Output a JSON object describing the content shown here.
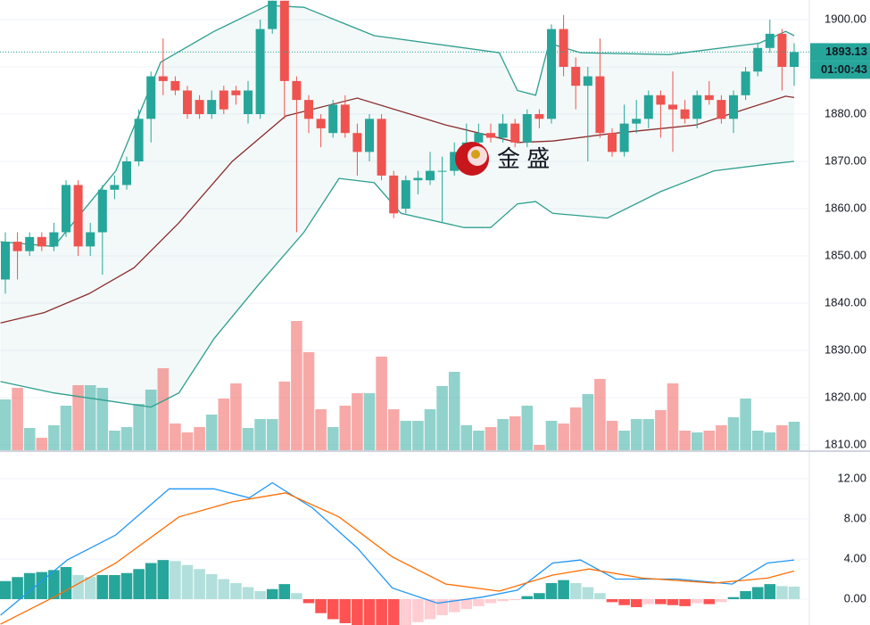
{
  "chart_data": {
    "type": "candlestick",
    "watermark": "金 盛",
    "ylim": [
      1808.87,
      1904.15
    ],
    "yticks": [
      {
        "value": 1810,
        "label": "1810.00"
      },
      {
        "value": 1820,
        "label": "1820.00"
      },
      {
        "value": 1830,
        "label": "1830.00"
      },
      {
        "value": 1840,
        "label": "1840.00"
      },
      {
        "value": 1850,
        "label": "1850.00"
      },
      {
        "value": 1860,
        "label": "1860.00"
      },
      {
        "value": 1870,
        "label": "1870.00"
      },
      {
        "value": 1880,
        "label": "1880.00"
      },
      {
        "value": 1890,
        "label": "1890.00"
      },
      {
        "value": 1900,
        "label": "1900.00"
      }
    ],
    "grid": true,
    "last_price": 1893.13,
    "last_price_label": "1893.13",
    "countdown": "01:00:43",
    "colors": {
      "up": "#26a69a",
      "down": "#ef5350",
      "band": "#2e9e8f",
      "mid": "#8b2e2e",
      "macd": "#2196f3",
      "signal": "#ff6d00",
      "hist_up": "#26a69a",
      "hist_up_fade": "#b2dfdb",
      "hist_down": "#ff5252",
      "hist_down_fade": "#ffcdd2"
    },
    "candles": {
      "open": [
        1845,
        1853,
        1851,
        1854,
        1852,
        1855,
        1865,
        1852,
        1855,
        1864,
        1865,
        1870,
        1879,
        1888,
        1887,
        1885,
        1883,
        1880,
        1885,
        1885,
        1880,
        1880,
        1898,
        1904,
        1887,
        1883,
        1879,
        1876,
        1882,
        1876,
        1872,
        1879,
        1867,
        1860,
        1866,
        1866,
        1868,
        1868,
        1872,
        1874,
        1876,
        1875,
        1878,
        1874,
        1880,
        1879,
        1898,
        1890,
        1886,
        1888,
        1876,
        1872,
        1878,
        1879,
        1884,
        1882,
        1881,
        1879,
        1884,
        1883,
        1879,
        1884,
        1889,
        1894,
        1897,
        1890
      ],
      "high": [
        1855,
        1855,
        1855,
        1855,
        1857,
        1866,
        1866,
        1857,
        1865,
        1867,
        1871,
        1881,
        1889,
        1896,
        1888,
        1886,
        1884,
        1885,
        1886,
        1886,
        1887,
        1900,
        1904,
        1904,
        1888,
        1884,
        1880,
        1883,
        1884,
        1878,
        1880,
        1880,
        1868,
        1867,
        1868,
        1872,
        1871,
        1874,
        1878,
        1878,
        1878,
        1880,
        1879,
        1881,
        1881,
        1899,
        1901,
        1892,
        1890,
        1896,
        1877,
        1882,
        1883,
        1885,
        1885,
        1889,
        1883,
        1885,
        1887,
        1884,
        1885,
        1890,
        1895,
        1900,
        1898,
        1895
      ],
      "low": [
        1842,
        1845,
        1850,
        1851,
        1851,
        1854,
        1850,
        1850,
        1846,
        1862,
        1864,
        1869,
        1874,
        1884,
        1884,
        1879,
        1879,
        1879,
        1880,
        1882,
        1878,
        1879,
        1897,
        1879,
        1855,
        1876,
        1873,
        1875,
        1875,
        1867,
        1870,
        1866,
        1858,
        1859,
        1863,
        1865,
        1857,
        1867,
        1870,
        1872,
        1874,
        1874,
        1873,
        1873,
        1877,
        1878,
        1888,
        1881,
        1870,
        1875,
        1871,
        1871,
        1876,
        1877,
        1875,
        1872,
        1878,
        1877,
        1882,
        1878,
        1876,
        1883,
        1888,
        1893,
        1885,
        1886
      ],
      "close": [
        1853,
        1851,
        1854,
        1852,
        1855,
        1865,
        1852,
        1855,
        1864,
        1865,
        1870,
        1879,
        1888,
        1887,
        1885,
        1880,
        1880,
        1883,
        1881,
        1884,
        1885,
        1898,
        1904,
        1887,
        1883,
        1879,
        1877,
        1882,
        1876,
        1872,
        1879,
        1867,
        1859,
        1866,
        1866.5,
        1868,
        1868,
        1872,
        1874,
        1876,
        1875,
        1878,
        1874,
        1880,
        1879,
        1898,
        1890,
        1886,
        1888,
        1876,
        1872,
        1878,
        1879,
        1884,
        1882,
        1881,
        1879,
        1884,
        1883,
        1879,
        1884,
        1889,
        1894,
        1897,
        1890,
        1893.13
      ]
    },
    "volume": [
      57,
      70,
      25,
      14,
      28,
      50,
      73,
      73,
      70,
      22,
      26,
      52,
      68,
      92,
      30,
      20,
      26,
      40,
      58,
      75,
      25,
      35,
      35,
      77,
      145,
      110,
      46,
      26,
      50,
      64,
      64,
      105,
      46,
      33,
      33,
      46,
      72,
      88,
      28,
      22,
      26,
      35,
      38,
      50,
      6,
      33,
      30,
      48,
      63,
      80,
      33,
      22,
      35,
      35,
      45,
      75,
      22,
      20,
      22,
      28,
      37,
      58,
      22,
      20,
      28,
      32
    ],
    "bands": {
      "upper": {
        "x": [
          -0.4,
          4,
          9.1,
          12.8,
          17.2,
          21.6,
          24.6,
          30.4,
          40.7,
          42.2,
          43.7,
          44.8,
          47.4,
          54.7,
          62.1,
          64.3,
          65
        ],
        "values": [
          1853,
          1852,
          1868,
          1891,
          1897.5,
          1903,
          1902.6,
          1896.6,
          1893,
          1885,
          1884,
          1895,
          1893,
          1892.6,
          1895,
          1897.5,
          1896.6
        ]
      },
      "middle": {
        "x": [
          -0.4,
          3.2,
          6.9,
          10.6,
          14.3,
          18.7,
          23.1,
          29,
          36.3,
          42.2,
          45.1,
          49.6,
          56.9,
          64.3,
          65
        ],
        "values": [
          1835.8,
          1838,
          1842,
          1847.5,
          1857,
          1870,
          1879.6,
          1883.4,
          1877.7,
          1874,
          1874.3,
          1875.8,
          1877.7,
          1883.8,
          1883.5
        ]
      },
      "lower": {
        "x": [
          -0.4,
          4,
          12,
          14.3,
          17.2,
          20.9,
          24.6,
          27.5,
          30.4,
          32.6,
          37.8,
          40,
          42.2,
          43.7,
          45.1,
          49.6,
          54,
          58.4,
          62.8,
          65
        ],
        "values": [
          1823.4,
          1821,
          1818,
          1821,
          1832.5,
          1844,
          1855,
          1866.4,
          1865.5,
          1859,
          1856,
          1856,
          1861,
          1861.5,
          1859,
          1858,
          1863.6,
          1868,
          1869.4,
          1870
        ]
      }
    },
    "macd": {
      "ylim": [
        -2.58,
        14.58
      ],
      "yticks": [
        {
          "value": 0,
          "label": "0.00"
        },
        {
          "value": 4,
          "label": "4.00"
        },
        {
          "value": 8,
          "label": "8.00"
        },
        {
          "value": 12,
          "label": "12.00"
        }
      ],
      "histogram": [
        1.8,
        2.2,
        2.6,
        2.7,
        2.9,
        3.2,
        2.4,
        2.2,
        2.4,
        2.4,
        2.6,
        3.0,
        3.6,
        3.9,
        3.8,
        3.4,
        3.0,
        2.5,
        2.0,
        1.6,
        1.2,
        0.8,
        1.0,
        1.5,
        0.6,
        -0.4,
        -1.4,
        -2.0,
        -2.4,
        -2.6,
        -2.7,
        -2.8,
        -2.9,
        -2.6,
        -2.3,
        -2.0,
        -1.6,
        -1.3,
        -1.0,
        -0.7,
        -0.4,
        -0.2,
        -0.1,
        0.3,
        0.6,
        1.6,
        1.9,
        1.6,
        1.2,
        0.6,
        -0.3,
        -0.6,
        -0.8,
        -0.5,
        -0.5,
        -0.6,
        -0.7,
        -0.4,
        -0.5,
        -0.3,
        0.2,
        0.8,
        1.2,
        1.5,
        1.3,
        1.25
      ],
      "macd_line": {
        "x": [
          -0.4,
          5.1,
          9.1,
          13.5,
          17.2,
          20.1,
          22,
          25.3,
          29,
          31.9,
          35.6,
          39.3,
          42.2,
          45.1,
          47.4,
          50.3,
          55.4,
          59.9,
          62.8,
          65
        ],
        "values": [
          -1.6,
          3.9,
          6.4,
          11,
          11,
          10.1,
          11.6,
          9.1,
          5.1,
          1.1,
          -0.4,
          0.2,
          0.9,
          3.6,
          3.9,
          2,
          2,
          1.5,
          3.6,
          3.9
        ]
      },
      "signal_line": {
        "x": [
          -0.4,
          4,
          9.1,
          14.3,
          18.7,
          23.1,
          27.5,
          31.9,
          36.3,
          40.7,
          45.1,
          48.1,
          52.5,
          58.4,
          62.8,
          65
        ],
        "values": [
          -2.5,
          0.2,
          3.6,
          8.2,
          9.7,
          10.6,
          8.2,
          4.2,
          1.5,
          0.8,
          2.4,
          3.0,
          2.1,
          1.6,
          2.1,
          2.8
        ]
      }
    }
  }
}
